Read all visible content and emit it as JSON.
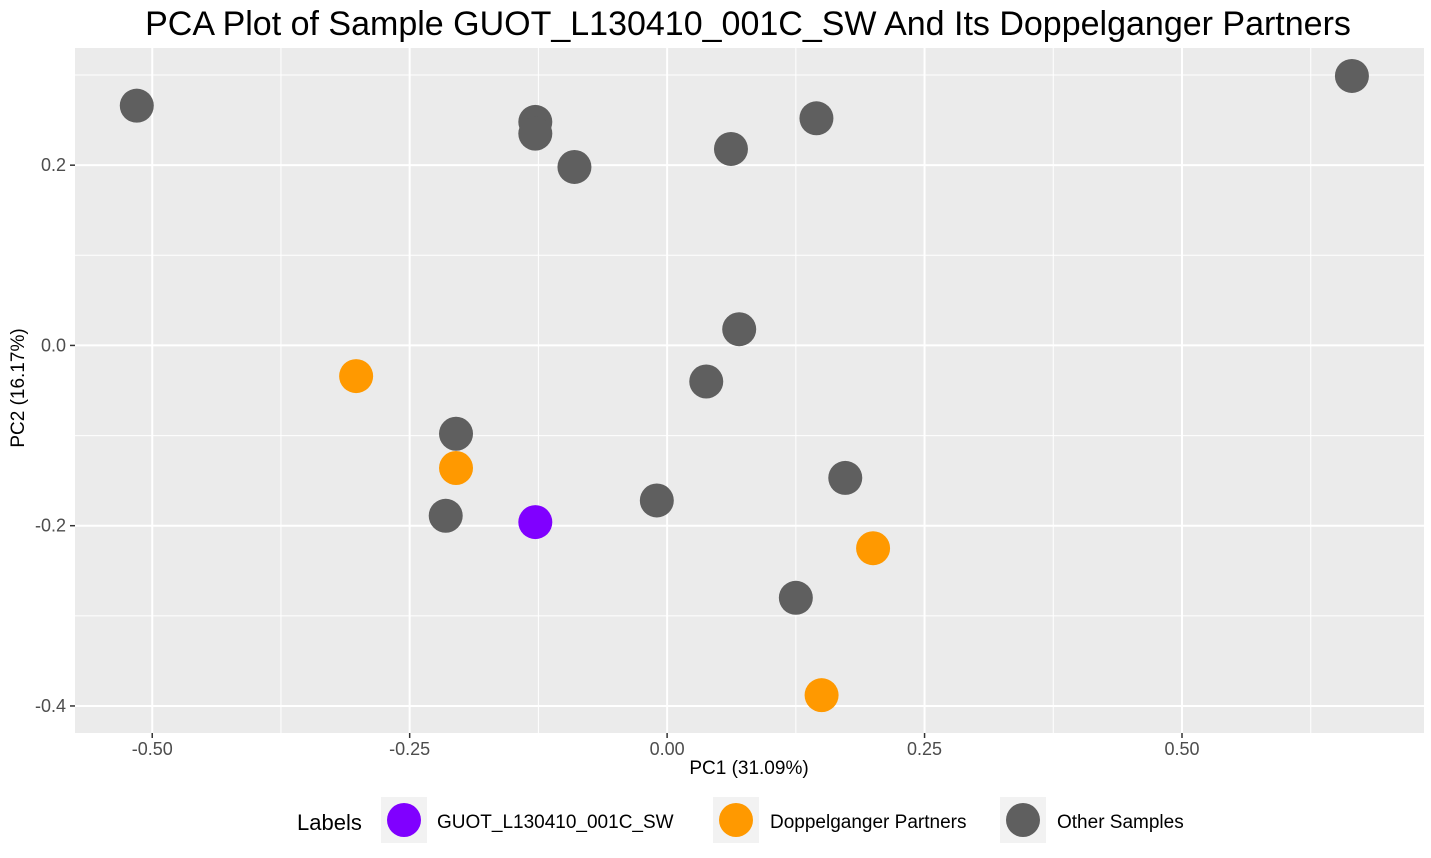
{
  "chart_data": {
    "type": "scatter",
    "title": "PCA Plot of Sample GUOT_L130410_001C_SW And Its Doppelganger Partners",
    "xlabel": "PC1 (31.09%)",
    "ylabel": "PC2 (16.17%)",
    "xlim": [
      -0.575,
      0.735
    ],
    "ylim": [
      -0.43,
      0.33
    ],
    "x_ticks": [
      -0.5,
      -0.25,
      0.0,
      0.25,
      0.5
    ],
    "x_tick_labels": [
      "-0.50",
      "-0.25",
      "0.00",
      "0.25",
      "0.50"
    ],
    "y_ticks": [
      -0.4,
      -0.2,
      0.0,
      0.2
    ],
    "y_tick_labels": [
      "-0.4",
      "-0.2",
      "0.0",
      "0.2"
    ],
    "grid": true,
    "legend_position": "bottom",
    "legend_title": "Labels",
    "series": [
      {
        "name": "GUOT_L130410_001C_SW",
        "color": "#8000ff",
        "points": [
          {
            "x": -0.128,
            "y": -0.196
          }
        ]
      },
      {
        "name": "Doppelganger Partners",
        "color": "#ff9900",
        "points": [
          {
            "x": -0.302,
            "y": -0.034
          },
          {
            "x": -0.205,
            "y": -0.136
          },
          {
            "x": 0.2,
            "y": -0.225
          },
          {
            "x": 0.15,
            "y": -0.388
          }
        ]
      },
      {
        "name": "Other Samples",
        "color": "#5f5f5f",
        "points": [
          {
            "x": -0.515,
            "y": 0.266
          },
          {
            "x": -0.128,
            "y": 0.248
          },
          {
            "x": -0.128,
            "y": 0.235
          },
          {
            "x": -0.09,
            "y": 0.198
          },
          {
            "x": 0.062,
            "y": 0.218
          },
          {
            "x": 0.145,
            "y": 0.252
          },
          {
            "x": 0.665,
            "y": 0.299
          },
          {
            "x": 0.07,
            "y": 0.018
          },
          {
            "x": 0.038,
            "y": -0.04
          },
          {
            "x": -0.205,
            "y": -0.098
          },
          {
            "x": -0.215,
            "y": -0.189
          },
          {
            "x": -0.01,
            "y": -0.172
          },
          {
            "x": 0.173,
            "y": -0.147
          },
          {
            "x": 0.125,
            "y": -0.28
          }
        ]
      }
    ]
  }
}
